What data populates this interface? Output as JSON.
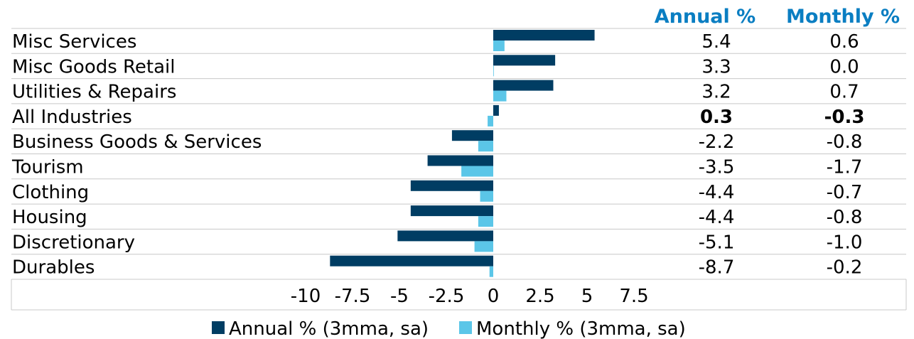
{
  "colors": {
    "annual": "#003d63",
    "monthly": "#5bc6e8",
    "header": "#0a7ec2",
    "grid": "#c8c8c8"
  },
  "headers": {
    "annual": "Annual %",
    "monthly": "Monthly %"
  },
  "chart_data": {
    "type": "bar",
    "orientation": "horizontal",
    "categories": [
      "Misc Services",
      "Misc Goods Retail",
      "Utilities & Repairs",
      "All Industries",
      "Business Goods & Services",
      "Tourism",
      "Clothing",
      "Housing",
      "Discretionary",
      "Durables"
    ],
    "series": [
      {
        "name": "Annual % (3mma, sa)",
        "values": [
          5.4,
          3.3,
          3.2,
          0.3,
          -2.2,
          -3.5,
          -4.4,
          -4.4,
          -5.1,
          -8.7
        ]
      },
      {
        "name": "Monthly % (3mma, sa)",
        "values": [
          0.6,
          0.0,
          0.7,
          -0.3,
          -0.8,
          -1.7,
          -0.7,
          -0.8,
          -1.0,
          -0.2
        ]
      }
    ],
    "table": {
      "annual": [
        "5.4",
        "3.3",
        "3.2",
        "0.3",
        "-2.2",
        "-3.5",
        "-4.4",
        "-4.4",
        "-5.1",
        "-8.7"
      ],
      "monthly": [
        "0.6",
        "0.0",
        "0.7",
        "-0.3",
        "-0.8",
        "-1.7",
        "-0.7",
        "-0.8",
        "-1.0",
        "-0.2"
      ],
      "bold_rows": [
        3
      ]
    },
    "xticks": [
      "-10",
      "-7.5",
      "-5",
      "-2.5",
      "0",
      "2.5",
      "5",
      "7.5"
    ],
    "xtick_values": [
      -10,
      -7.5,
      -5,
      -2.5,
      0,
      2.5,
      5,
      7.5
    ],
    "xlim": [
      -10,
      7.5
    ],
    "legend_placement": "bottom",
    "grid": "horizontal row separators"
  }
}
